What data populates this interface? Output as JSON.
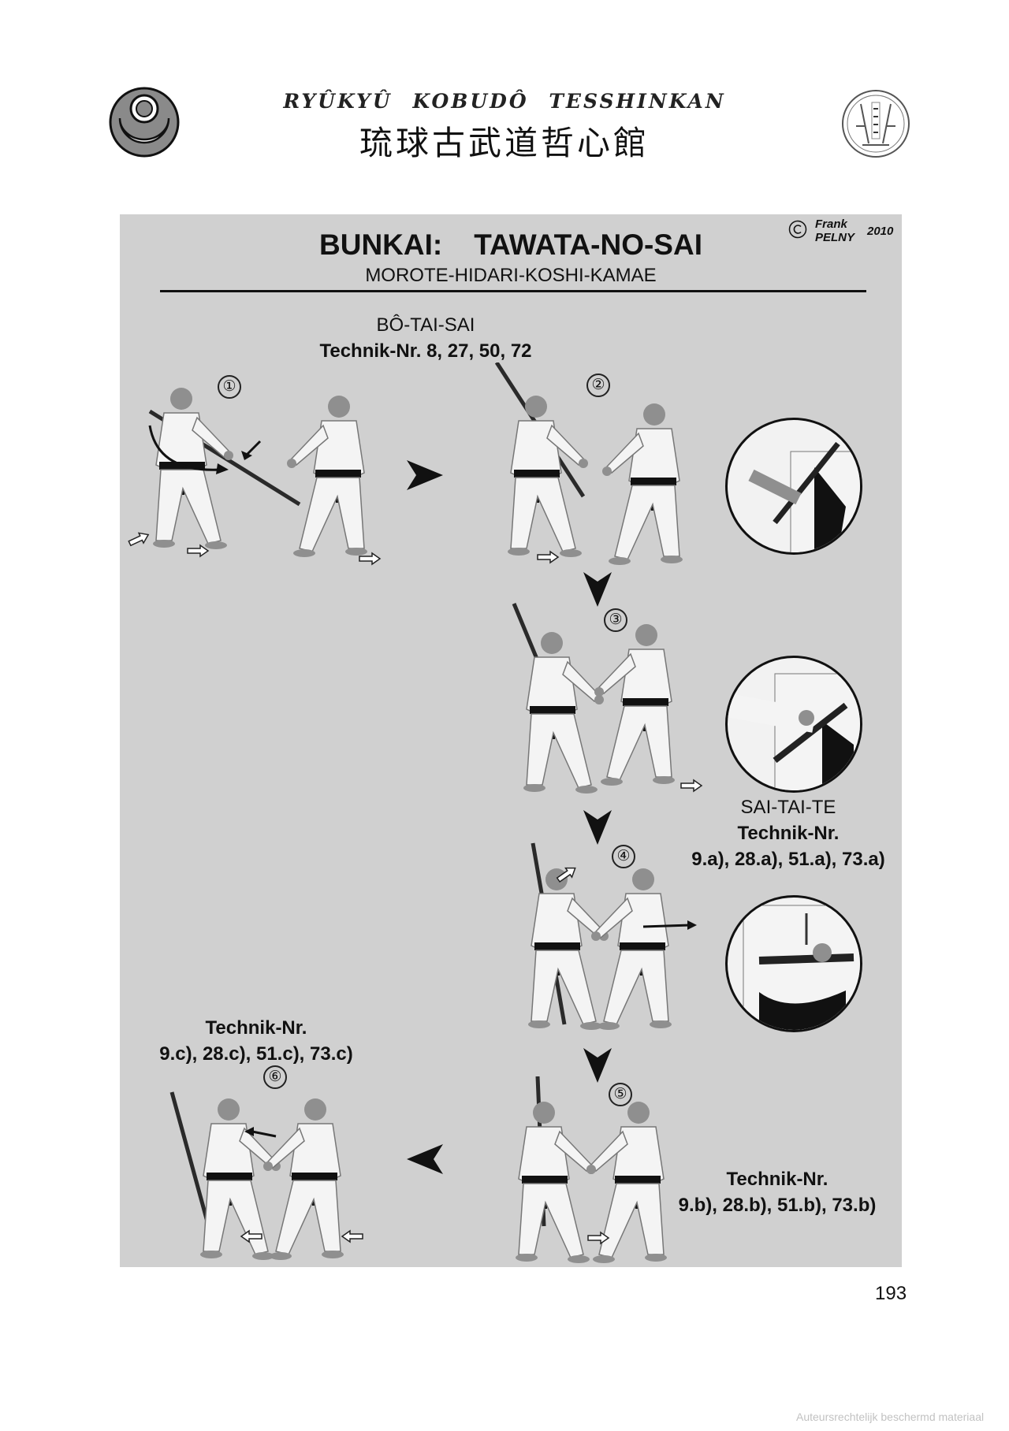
{
  "header": {
    "latin_title": "RYÛKYÛ KOBUDÔ TESSHINKAN",
    "kanji_title": "琉球古武道哲心館"
  },
  "panel": {
    "title_part1": "BUNKAI:",
    "title_part2": "TAWATA-NO-SAI",
    "subtitle": "MOROTE-HIDARI-KOSHI-KAMAE",
    "copyright_symbol": "©",
    "copyright_first": "Frank",
    "copyright_last": "PELNY",
    "copyright_year": "2010"
  },
  "labels": {
    "bo_tai_sai": {
      "name": "BÔ-TAI-SAI",
      "technik": "Technik-Nr. 8, 27, 50, 72"
    },
    "sai_tai_te": {
      "name": "SAI-TAI-TE",
      "technik_head": "Technik-Nr.",
      "technik_nums": "9.a), 28.a), 51.a), 73.a)"
    },
    "step5": {
      "technik_head": "Technik-Nr.",
      "technik_nums": "9.b), 28.b), 51.b), 73.b)"
    },
    "step6": {
      "technik_head": "Technik-Nr.",
      "technik_nums": "9.c), 28.c), 51.c), 73.c)"
    }
  },
  "steps": [
    "①",
    "②",
    "③",
    "④",
    "⑤",
    "⑥"
  ],
  "page_number": "193",
  "watermark": "Auteursrechtelijk beschermd materiaal",
  "colors": {
    "panel": "#d0d0d0",
    "gi": "#f4f4f4",
    "belt": "#111111",
    "skin": "#8f8f8f"
  }
}
